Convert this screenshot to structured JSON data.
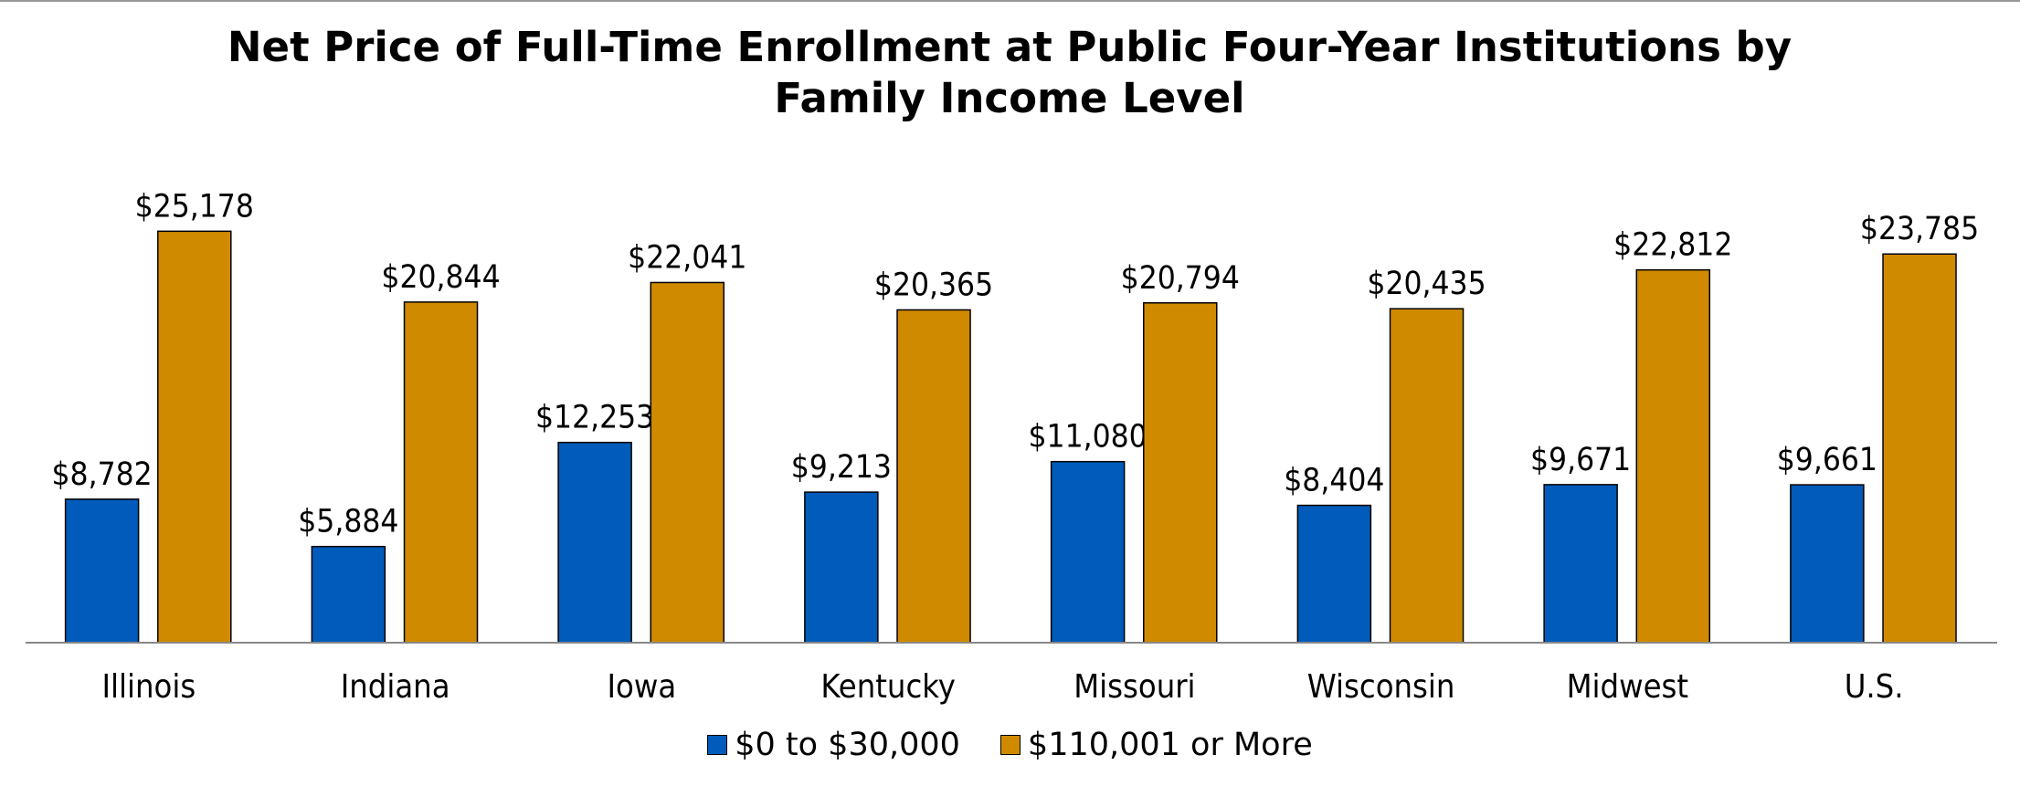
{
  "chart_data": {
    "type": "bar",
    "title": "Net Price of Full-Time Enrollment at Public Four-Year Institutions by Family Income Level",
    "categories": [
      "Illinois",
      "Indiana",
      "Iowa",
      "Kentucky",
      "Missouri",
      "Wisconsin",
      "Midwest",
      "U.S."
    ],
    "series": [
      {
        "name": "$0 to $30,000",
        "color": "#005bbb",
        "values": [
          8782,
          5884,
          12253,
          9213,
          11080,
          8404,
          9671,
          9661
        ],
        "value_labels": [
          "$8,782",
          "$5,884",
          "$12,253",
          "$9,213",
          "$11,080",
          "$8,404",
          "$9,671",
          "$9,661"
        ]
      },
      {
        "name": "$110,001 or More",
        "color": "#d08a00",
        "values": [
          25178,
          20844,
          22041,
          20365,
          20794,
          20435,
          22812,
          23785
        ],
        "value_labels": [
          "$25,178",
          "$20,844",
          "$22,041",
          "$20,365",
          "$20,794",
          "$20,435",
          "$22,812",
          "$23,785"
        ]
      }
    ],
    "ylim": [
      0,
      30000
    ]
  }
}
